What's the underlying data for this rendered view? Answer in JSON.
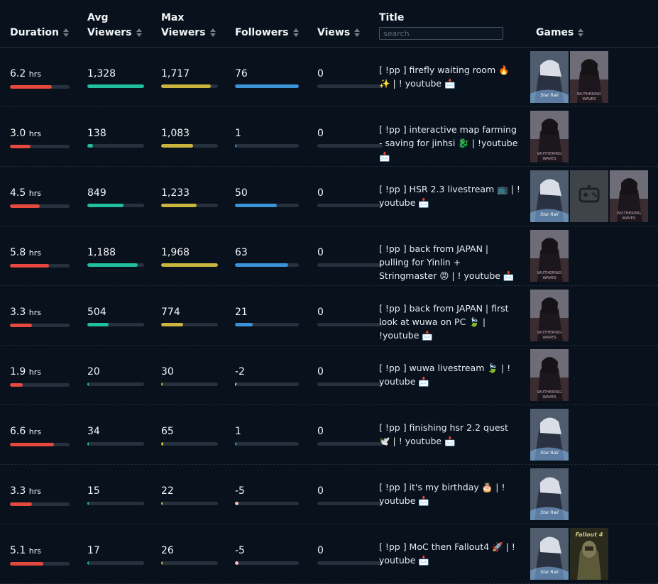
{
  "headers": {
    "duration": "Duration",
    "avg_viewers_1": "Avg",
    "avg_viewers_2": "Viewers",
    "max_viewers_1": "Max",
    "max_viewers_2": "Viewers",
    "followers": "Followers",
    "views": "Views",
    "title": "Title",
    "title_search_placeholder": "search",
    "games": "Games"
  },
  "colors": {
    "duration": "#e5493e",
    "avg_viewers": "#1fbf9f",
    "max_viewers": "#c9b53e",
    "followers": "#3b92d6",
    "negative": "#f2c0c0"
  },
  "rows": [
    {
      "duration": "6.2",
      "unit": "hrs",
      "duration_fill": 0.7,
      "avg": "1,328",
      "avg_fill": 1.0,
      "max": "1,717",
      "max_fill": 0.88,
      "followers": "76",
      "followers_fill": 1.0,
      "views": "0",
      "title": "[ !pp ] firefly waiting room 🔥 ✨ | ! youtube 📩",
      "games": [
        "honkai-star-rail",
        "wuthering-waves"
      ]
    },
    {
      "duration": "3.0",
      "unit": "hrs",
      "duration_fill": 0.34,
      "avg": "138",
      "avg_fill": 0.1,
      "max": "1,083",
      "max_fill": 0.56,
      "followers": "1",
      "followers_fill": 0.01,
      "views": "0",
      "title": "[ !pp ] interactive map farming - saving for jinhsi 🐉 | !youtube 📩",
      "games": [
        "wuthering-waves"
      ]
    },
    {
      "duration": "4.5",
      "unit": "hrs",
      "duration_fill": 0.5,
      "avg": "849",
      "avg_fill": 0.64,
      "max": "1,233",
      "max_fill": 0.63,
      "followers": "50",
      "followers_fill": 0.66,
      "views": "0",
      "title": "[ !pp ] HSR 2.3 livestream 📺 | ! youtube 📩",
      "games": [
        "honkai-star-rail",
        "placeholder-game",
        "wuthering-waves"
      ]
    },
    {
      "duration": "5.8",
      "unit": "hrs",
      "duration_fill": 0.65,
      "avg": "1,188",
      "avg_fill": 0.89,
      "max": "1,968",
      "max_fill": 1.0,
      "followers": "63",
      "followers_fill": 0.83,
      "views": "0",
      "title": "[ !pp ] back from JAPAN | pulling for Yinlin + Stringmaster 😡 | ! youtube 📩",
      "games": [
        "wuthering-waves"
      ]
    },
    {
      "duration": "3.3",
      "unit": "hrs",
      "duration_fill": 0.37,
      "avg": "504",
      "avg_fill": 0.38,
      "max": "774",
      "max_fill": 0.39,
      "followers": "21",
      "followers_fill": 0.28,
      "views": "0",
      "title": "[ !pp ] back from JAPAN | first look at wuwa on PC 🍃 | !youtube 📩",
      "games": [
        "wuthering-waves"
      ]
    },
    {
      "duration": "1.9",
      "unit": "hrs",
      "duration_fill": 0.21,
      "avg": "20",
      "avg_fill": 0.015,
      "max": "30",
      "max_fill": 0.015,
      "followers": "-2",
      "followers_fill": 0.02,
      "followers_negative": true,
      "views": "0",
      "title": "[ !pp ] wuwa livestream 🍃 | ! youtube 📩",
      "games": [
        "wuthering-waves"
      ]
    },
    {
      "duration": "6.6",
      "unit": "hrs",
      "duration_fill": 0.74,
      "avg": "34",
      "avg_fill": 0.025,
      "max": "65",
      "max_fill": 0.033,
      "followers": "1",
      "followers_fill": 0.01,
      "views": "0",
      "title": "[ !pp ] finishing hsr 2.2 quest 🕊️ | ! youtube 📩",
      "games": [
        "honkai-star-rail"
      ]
    },
    {
      "duration": "3.3",
      "unit": "hrs",
      "duration_fill": 0.37,
      "avg": "15",
      "avg_fill": 0.011,
      "max": "22",
      "max_fill": 0.011,
      "followers": "-5",
      "followers_fill": 0.05,
      "followers_negative": true,
      "views": "0",
      "title": "[ !pp ] it's my birthday 🎂 | ! youtube 📩",
      "games": [
        "honkai-star-rail"
      ]
    },
    {
      "duration": "5.1",
      "unit": "hrs",
      "duration_fill": 0.56,
      "avg": "17",
      "avg_fill": 0.013,
      "max": "26",
      "max_fill": 0.013,
      "followers": "-5",
      "followers_fill": 0.05,
      "followers_negative": true,
      "views": "0",
      "title": "[ !pp ] MoC then Fallout4 🚀 | ! youtube 📩",
      "games": [
        "honkai-star-rail",
        "fallout-4"
      ]
    }
  ],
  "game_art": {
    "wuthering-waves": {
      "label": "WUTHERING WAVES",
      "bg": "#3b2c31",
      "accent": "#c9a9b6"
    },
    "honkai-star-rail": {
      "label": "Star Rail",
      "bg": "#263447",
      "accent": "#9fc3e6"
    },
    "placeholder-game": {
      "label": "",
      "bg": "#3f444b",
      "accent": "#6c7178"
    },
    "fallout-4": {
      "label": "Fallout 4",
      "bg": "#3e4027",
      "accent": "#c9c280"
    }
  }
}
